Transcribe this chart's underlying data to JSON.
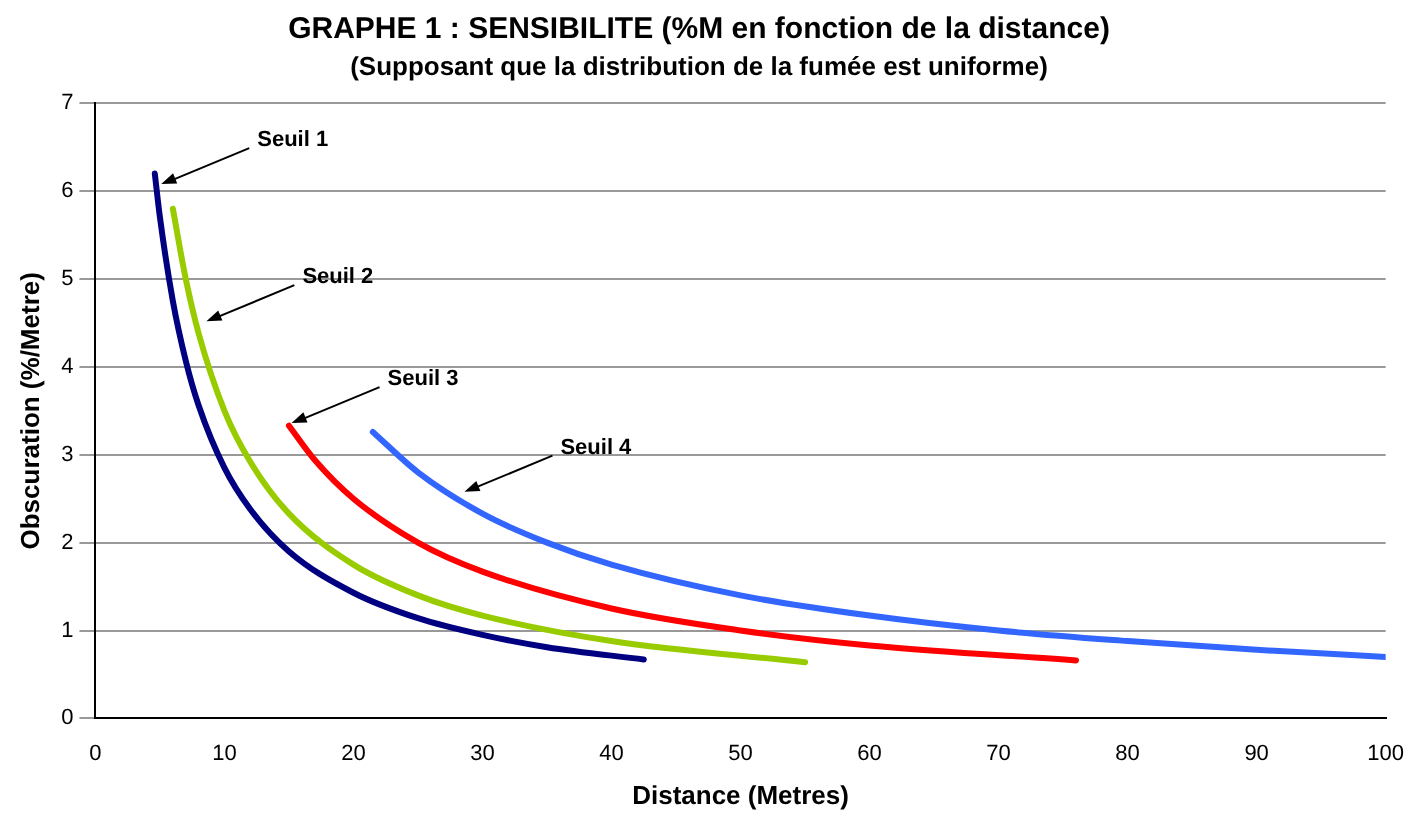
{
  "chart_data": {
    "type": "line",
    "title": "GRAPHE 1 : SENSIBILITE (%M en fonction de la distance)",
    "subtitle": "(Supposant que la distribution de la fumée est uniforme)",
    "xlabel": "Distance (Metres)",
    "ylabel": "Obscuration (%/Metre)",
    "xlim": [
      0,
      100
    ],
    "xticks": [
      0,
      10,
      20,
      30,
      40,
      50,
      60,
      70,
      80,
      90,
      100
    ],
    "ylim": [
      0,
      7
    ],
    "yticks": [
      0,
      1,
      2,
      3,
      4,
      5,
      6,
      7
    ],
    "grid": "y",
    "legend": false,
    "marker": "none",
    "line_style": "solid",
    "series": [
      {
        "color": "#000080",
        "x": [
          4.6,
          5,
          6,
          7,
          8,
          10,
          12,
          15,
          20,
          25,
          30,
          35,
          42.5
        ],
        "values": [
          6.2,
          5.7,
          4.75,
          4.07,
          3.56,
          2.85,
          2.38,
          1.9,
          1.43,
          1.14,
          0.95,
          0.81,
          0.67
        ]
      },
      {
        "color": "#99cc00",
        "x": [
          6,
          7,
          8,
          10,
          12,
          15,
          20,
          25,
          30,
          40,
          55
        ],
        "values": [
          5.8,
          5.0,
          4.38,
          3.5,
          2.92,
          2.33,
          1.75,
          1.4,
          1.17,
          0.88,
          0.64
        ]
      },
      {
        "color": "#ff0000",
        "x": [
          15,
          17,
          20,
          25,
          30,
          40,
          50,
          60,
          76
        ],
        "values": [
          3.33,
          2.94,
          2.5,
          2.0,
          1.67,
          1.25,
          1.0,
          0.83,
          0.66
        ]
      },
      {
        "color": "#3366ff",
        "x": [
          21.5,
          25,
          30,
          35,
          40,
          50,
          60,
          70,
          80,
          90,
          100
        ],
        "values": [
          3.26,
          2.8,
          2.33,
          2.0,
          1.75,
          1.4,
          1.17,
          1.0,
          0.88,
          0.78,
          0.7
        ]
      }
    ],
    "annotations": [
      {
        "text": "Seuil 1",
        "x": 5.1,
        "y": 6.08
      },
      {
        "text": "Seuil 2",
        "x": 8.6,
        "y": 4.52
      },
      {
        "text": "Seuil 3",
        "x": 15.2,
        "y": 3.36
      },
      {
        "text": "Seuil 4",
        "x": 28.6,
        "y": 2.58
      }
    ]
  }
}
